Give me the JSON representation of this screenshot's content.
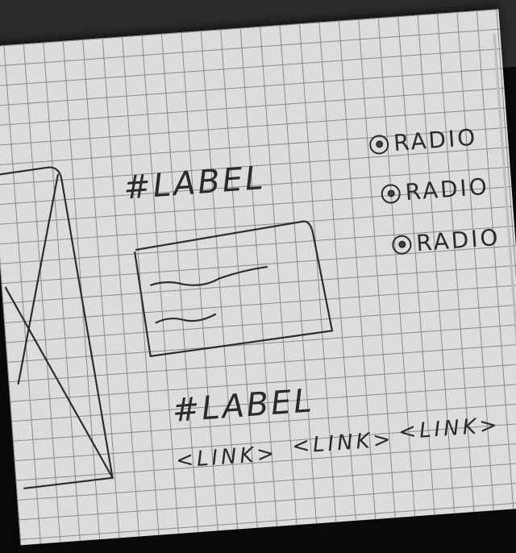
{
  "labels": [
    "#LABEL",
    "#LABEL"
  ],
  "radios": [
    {
      "label": "RADIO"
    },
    {
      "label": "RADIO"
    },
    {
      "label": "RADIO"
    }
  ],
  "links": [
    "<LINK>",
    "<LINK>",
    "<LINK>"
  ],
  "icons": [
    "image-placeholder-icon",
    "textarea-sketch"
  ]
}
